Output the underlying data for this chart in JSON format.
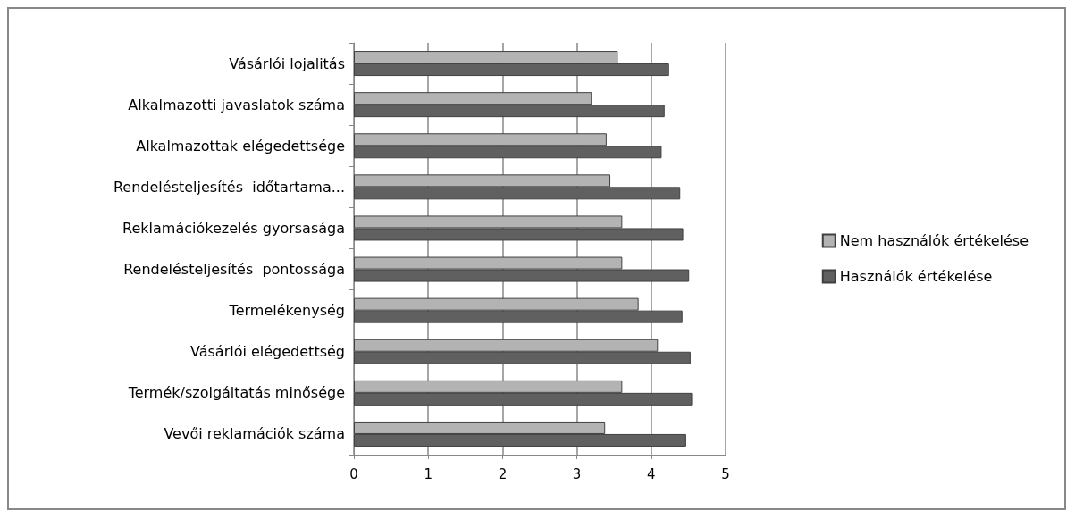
{
  "chart_data": {
    "type": "bar",
    "orientation": "horizontal",
    "categories": [
      "Vásárlói lojalitás",
      "Alkalmazotti javaslatok száma",
      "Alkalmazottak elégedettsége",
      "Rendelésteljesítés  időtartama...",
      "Reklamációkezelés gyorsasága",
      "Rendelésteljesítés  pontossága",
      "Termelékenység",
      "Vásárlói elégedettség",
      "Termék/szolgáltatás minősége",
      "Vevői reklamációk száma"
    ],
    "series": [
      {
        "name": "Nem használók értékelése",
        "color": "#b3b3b3",
        "values": [
          3.55,
          3.2,
          3.4,
          3.45,
          3.61,
          3.61,
          3.83,
          4.09,
          3.61,
          3.38
        ]
      },
      {
        "name": "Használók értékelése",
        "color": "#606060",
        "values": [
          4.24,
          4.18,
          4.14,
          4.39,
          4.43,
          4.51,
          4.42,
          4.53,
          4.55,
          4.47
        ]
      }
    ],
    "xlim": [
      0,
      5
    ],
    "xticks": [
      0,
      1,
      2,
      3,
      4,
      5
    ],
    "grid": "x",
    "legend": "right"
  }
}
